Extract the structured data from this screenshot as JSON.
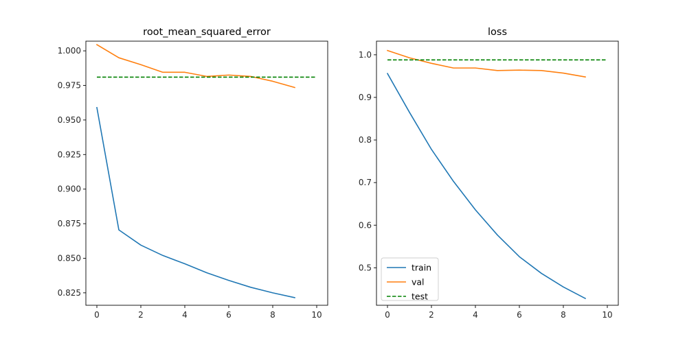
{
  "colors": {
    "train": "#1f77b4",
    "val": "#ff7f0e",
    "test": "#008000",
    "axes": "#000000",
    "background": "#ffffff"
  },
  "chart_data": [
    {
      "type": "line",
      "title": "root_mean_squared_error",
      "xlabel": "",
      "ylabel": "",
      "xlim": [
        -0.5,
        10.5
      ],
      "ylim": [
        0.816,
        1.007
      ],
      "xticks": [
        0,
        2,
        4,
        6,
        8,
        10
      ],
      "yticks": [
        0.825,
        0.85,
        0.875,
        0.9,
        0.925,
        0.95,
        0.975,
        1.0
      ],
      "ytick_labels": [
        "0.825",
        "0.850",
        "0.875",
        "0.900",
        "0.925",
        "0.950",
        "0.975",
        "1.000"
      ],
      "grid": false,
      "legend": null,
      "series": [
        {
          "name": "train",
          "style": "solid",
          "x": [
            0,
            1,
            2,
            3,
            4,
            5,
            6,
            7,
            8,
            9
          ],
          "y": [
            0.959,
            0.8705,
            0.8595,
            0.852,
            0.846,
            0.8395,
            0.834,
            0.829,
            0.825,
            0.8215
          ]
        },
        {
          "name": "val",
          "style": "solid",
          "x": [
            0,
            1,
            2,
            3,
            4,
            5,
            6,
            7,
            8,
            9
          ],
          "y": [
            1.0045,
            0.995,
            0.99,
            0.9845,
            0.9845,
            0.9815,
            0.9825,
            0.9815,
            0.978,
            0.9735
          ]
        },
        {
          "name": "test",
          "style": "dashed",
          "x": [
            0,
            10
          ],
          "y": [
            0.981,
            0.981
          ]
        }
      ]
    },
    {
      "type": "line",
      "title": "loss",
      "xlabel": "",
      "ylabel": "",
      "xlim": [
        -0.5,
        10.5
      ],
      "ylim": [
        0.412,
        1.032
      ],
      "xticks": [
        0,
        2,
        4,
        6,
        8,
        10
      ],
      "yticks": [
        0.5,
        0.6,
        0.7,
        0.8,
        0.9,
        1.0
      ],
      "ytick_labels": [
        "0.5",
        "0.6",
        "0.7",
        "0.8",
        "0.9",
        "1.0"
      ],
      "grid": false,
      "legend": "lower-left",
      "series": [
        {
          "name": "train",
          "style": "solid",
          "x": [
            0,
            1,
            2,
            3,
            4,
            5,
            6,
            7,
            8,
            9
          ],
          "y": [
            0.956,
            0.865,
            0.778,
            0.703,
            0.636,
            0.577,
            0.526,
            0.487,
            0.455,
            0.428
          ]
        },
        {
          "name": "val",
          "style": "solid",
          "x": [
            0,
            1,
            2,
            3,
            4,
            5,
            6,
            7,
            8,
            9
          ],
          "y": [
            1.01,
            0.993,
            0.98,
            0.969,
            0.969,
            0.963,
            0.964,
            0.963,
            0.957,
            0.948
          ]
        },
        {
          "name": "test",
          "style": "dashed",
          "x": [
            0,
            10
          ],
          "y": [
            0.988,
            0.988
          ]
        }
      ]
    }
  ]
}
